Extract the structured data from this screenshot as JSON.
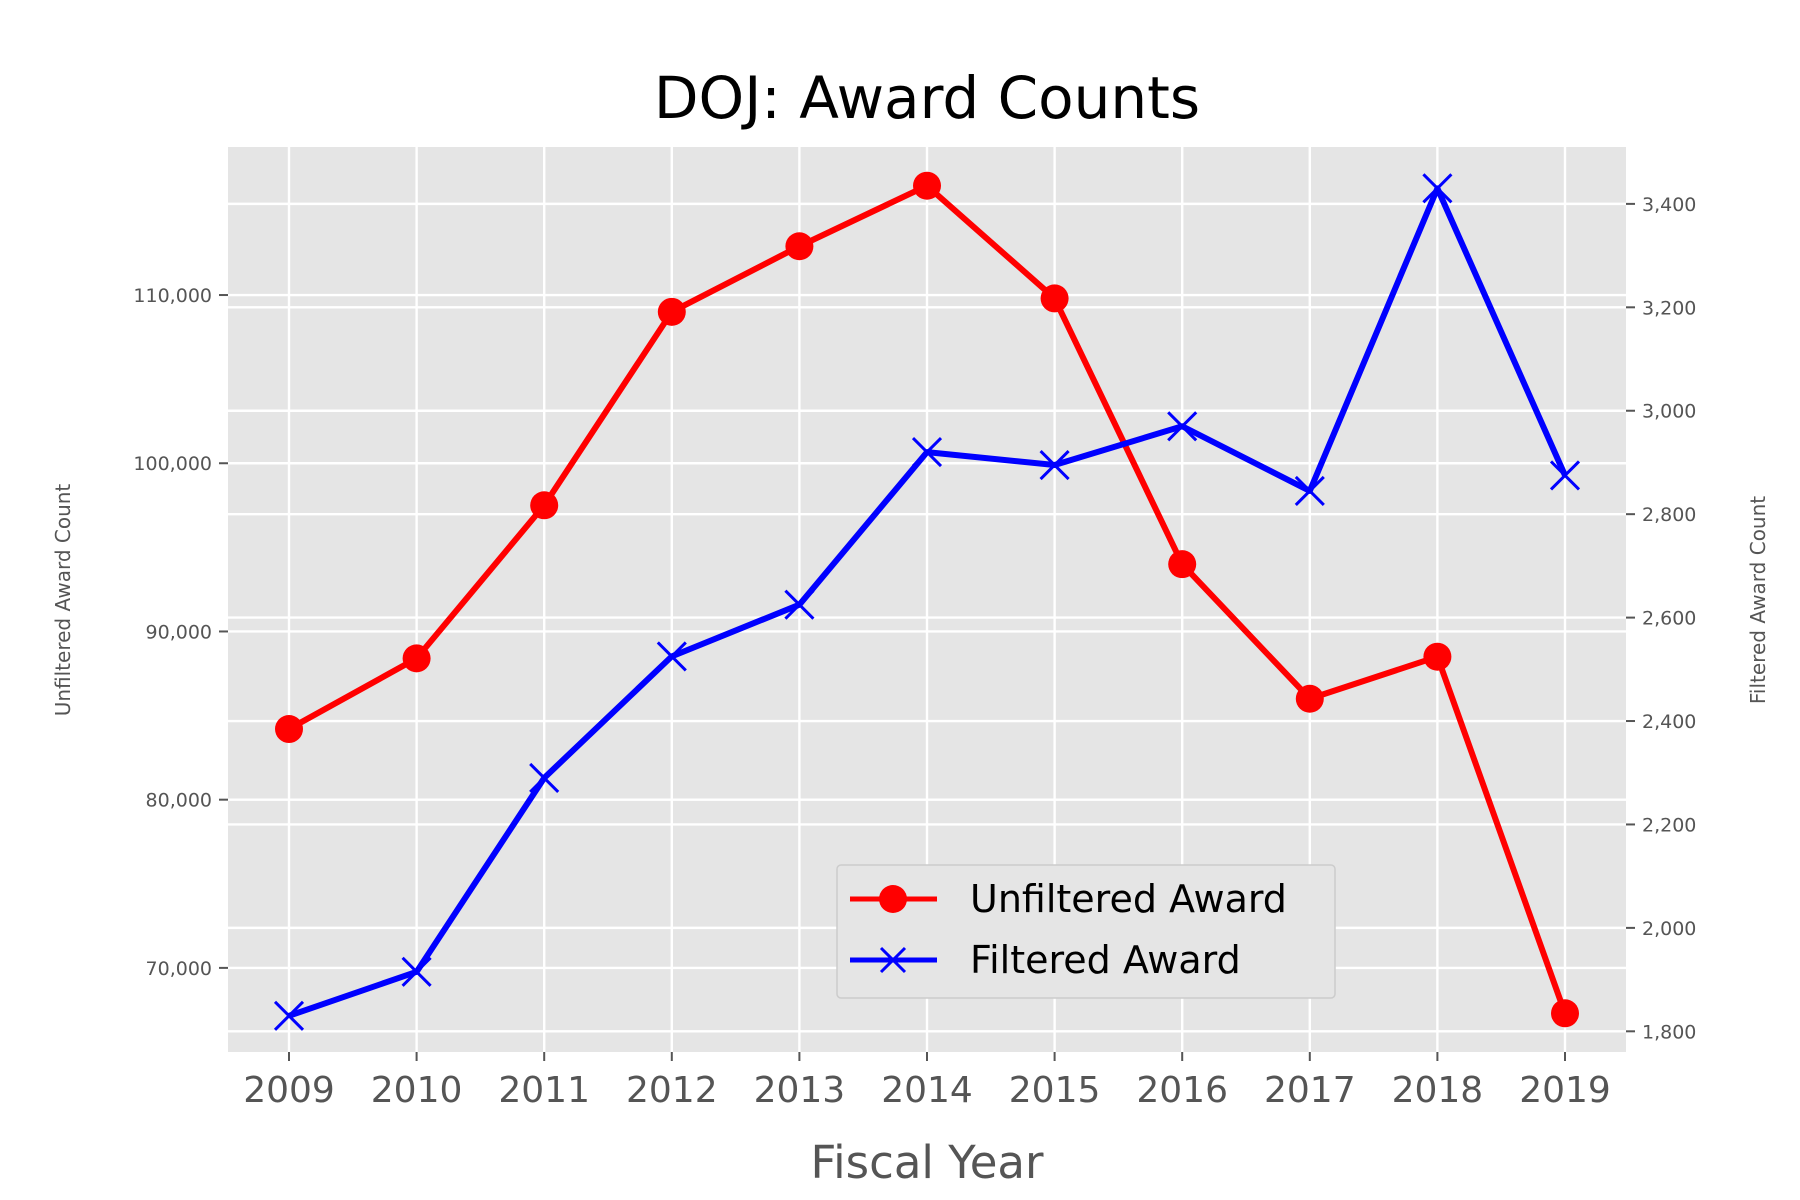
{
  "chart_data": {
    "type": "line",
    "title": "DOJ: Award Counts",
    "xlabel": "Fiscal Year",
    "ylabel_left": "Unfiltered Award Count",
    "ylabel_right": "Filtered Award Count",
    "categories": [
      "2009",
      "2010",
      "2011",
      "2012",
      "2013",
      "2014",
      "2015",
      "2016",
      "2017",
      "2018",
      "2019"
    ],
    "ylim_left": [
      65000,
      118800
    ],
    "ylim_right": [
      1760,
      3510
    ],
    "yticks_left": [
      70000,
      80000,
      90000,
      100000,
      110000
    ],
    "yticks_left_labels": [
      "70,000",
      "80,000",
      "90,000",
      "100,000",
      "110,000"
    ],
    "yticks_right": [
      1800,
      2000,
      2200,
      2400,
      2600,
      2800,
      3000,
      3200,
      3400
    ],
    "yticks_right_labels": [
      "1,800",
      "2,000",
      "2,200",
      "2,400",
      "2,600",
      "2,800",
      "3,000",
      "3,200",
      "3,400"
    ],
    "series": [
      {
        "name": "Unfiltered Award",
        "axis": "left",
        "color": "#ff0000",
        "marker": "circle",
        "values": [
          84200,
          88400,
          97500,
          109000,
          112900,
          116500,
          109800,
          94000,
          86000,
          88500,
          67300
        ]
      },
      {
        "name": "Filtered Award",
        "axis": "right",
        "color": "#0000ff",
        "marker": "x",
        "values": [
          1830,
          1915,
          2290,
          2525,
          2625,
          2920,
          2895,
          2970,
          2845,
          3430,
          2875
        ]
      }
    ],
    "grid": true,
    "legend_position": "lower-right"
  }
}
